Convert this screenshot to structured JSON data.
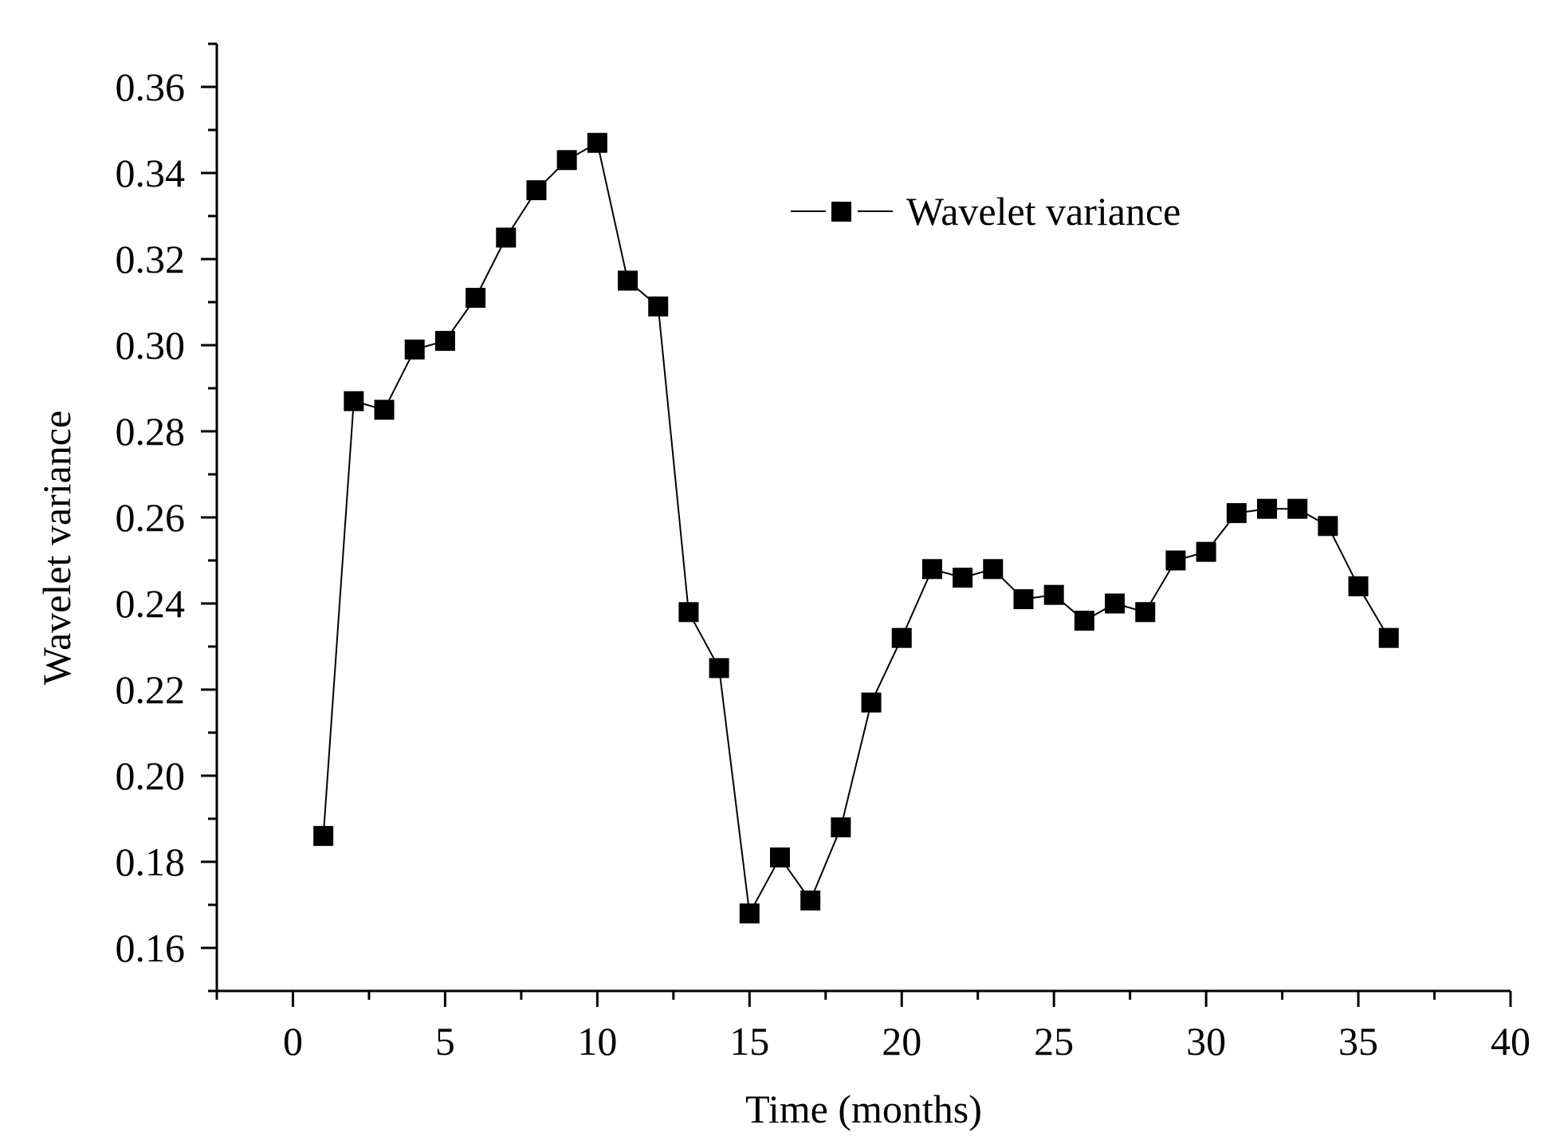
{
  "chart_data": {
    "type": "line",
    "title": "",
    "xlabel": "Time (months)",
    "ylabel": "Wavelet variance",
    "xlim": [
      -2.5,
      40
    ],
    "ylim": [
      0.15,
      0.37
    ],
    "x_ticks": [
      0,
      5,
      10,
      15,
      20,
      25,
      30,
      35,
      40
    ],
    "x_tick_labels": [
      "0",
      "5",
      "10",
      "15",
      "20",
      "25",
      "30",
      "35",
      "40"
    ],
    "y_ticks": [
      0.16,
      0.18,
      0.2,
      0.22,
      0.24,
      0.26,
      0.28,
      0.3,
      0.32,
      0.34,
      0.36
    ],
    "y_tick_labels": [
      "0.16",
      "0.18",
      "0.20",
      "0.22",
      "0.24",
      "0.26",
      "0.28",
      "0.30",
      "0.32",
      "0.34",
      "0.36"
    ],
    "grid": false,
    "legend_position": "top-right",
    "series": [
      {
        "name": "Wavelet variance",
        "color": "#000000",
        "marker": "square",
        "x": [
          1,
          2,
          3,
          4,
          5,
          6,
          7,
          8,
          9,
          10,
          11,
          12,
          13,
          14,
          15,
          16,
          17,
          18,
          19,
          20,
          21,
          22,
          23,
          24,
          25,
          26,
          27,
          28,
          29,
          30,
          31,
          32,
          33,
          34,
          35,
          36
        ],
        "values": [
          0.186,
          0.287,
          0.285,
          0.299,
          0.301,
          0.311,
          0.325,
          0.336,
          0.343,
          0.347,
          0.315,
          0.309,
          0.238,
          0.225,
          0.168,
          0.181,
          0.171,
          0.188,
          0.217,
          0.232,
          0.248,
          0.246,
          0.248,
          0.241,
          0.242,
          0.236,
          0.24,
          0.238,
          0.25,
          0.252,
          0.261,
          0.262,
          0.262,
          0.258,
          0.244,
          0.232
        ]
      }
    ]
  }
}
